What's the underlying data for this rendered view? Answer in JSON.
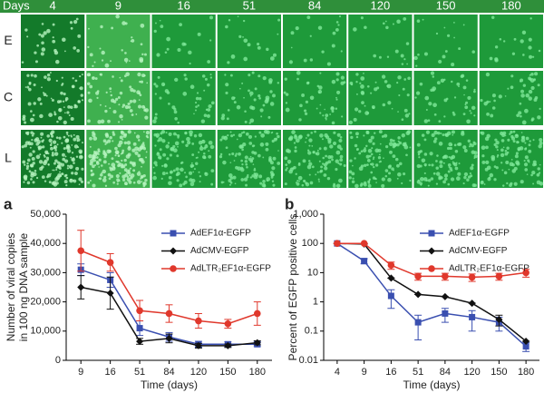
{
  "figure": {
    "header": "Days",
    "days": [
      "4",
      "9",
      "16",
      "51",
      "84",
      "120",
      "150",
      "180"
    ],
    "rows": [
      "E",
      "C",
      "L"
    ]
  },
  "chart_data": [
    {
      "type": "line",
      "panel": "a",
      "ylabel": "Number of viral copies\nin 100 ng DNA sample",
      "xlabel": "Time (days)",
      "categories": [
        "9",
        "16",
        "51",
        "84",
        "120",
        "150",
        "180"
      ],
      "ylim": [
        0,
        50000
      ],
      "yticks": [
        0,
        {
          "value": 10000,
          "label": "10,000"
        },
        {
          "value": 20000,
          "label": "20,000"
        },
        {
          "value": 30000,
          "label": "30,000"
        },
        {
          "value": 40000,
          "label": "40,000"
        },
        {
          "value": 50000,
          "label": "50,000"
        }
      ],
      "series": [
        {
          "name": "AdEF1α-EGFP",
          "color": "#3a4fb0",
          "marker": "square",
          "values": [
            31000,
            27500,
            11000,
            8000,
            5500,
            5500,
            5500
          ],
          "errors": [
            2000,
            2500,
            2500,
            1500,
            1000,
            800,
            800
          ]
        },
        {
          "name": "AdCMV-EGFP",
          "color": "#111111",
          "marker": "diamond",
          "values": [
            25000,
            23000,
            6500,
            7500,
            5000,
            5000,
            6000
          ],
          "errors": [
            4000,
            5500,
            1000,
            1500,
            800,
            600,
            700
          ]
        },
        {
          "name": "AdLTR₂EF1α-EGFP",
          "color": "#e0382c",
          "marker": "circle",
          "values": [
            37500,
            33500,
            17000,
            16000,
            13500,
            12500,
            16000
          ],
          "errors": [
            7000,
            3000,
            3500,
            3000,
            2500,
            1500,
            4000
          ]
        }
      ]
    },
    {
      "type": "line",
      "panel": "b",
      "ylabel": "Percent of EGFP positive cells",
      "xlabel": "Time (days)",
      "log_scale": true,
      "categories": [
        "4",
        "9",
        "16",
        "51",
        "84",
        "120",
        "150",
        "180"
      ],
      "ylim": [
        0.01,
        1000
      ],
      "yticks": [
        0.01,
        0.1,
        1,
        10,
        100,
        {
          "value": 1000,
          "label": "1,000"
        }
      ],
      "series": [
        {
          "name": "AdEF1α-EGFP",
          "color": "#3a4fb0",
          "marker": "square",
          "values": [
            100,
            25,
            1.6,
            0.2,
            0.4,
            0.3,
            0.2,
            0.03
          ],
          "errors": [
            0,
            5,
            1,
            0.15,
            0.2,
            0.2,
            0.1,
            0.01
          ]
        },
        {
          "name": "AdCMV-EGFP",
          "color": "#111111",
          "marker": "diamond",
          "values": [
            100,
            95,
            6.5,
            1.8,
            1.5,
            0.9,
            0.25,
            0.045
          ],
          "errors": [
            0,
            0,
            0,
            0,
            0,
            0,
            0.1,
            0
          ]
        },
        {
          "name": "AdLTR₂EF1α-EGFP",
          "color": "#e0382c",
          "marker": "circle",
          "values": [
            100,
            100,
            18,
            7.5,
            7.5,
            7,
            7.5,
            10
          ],
          "errors": [
            0,
            0,
            5,
            2,
            2,
            2,
            2,
            3
          ]
        }
      ]
    }
  ]
}
